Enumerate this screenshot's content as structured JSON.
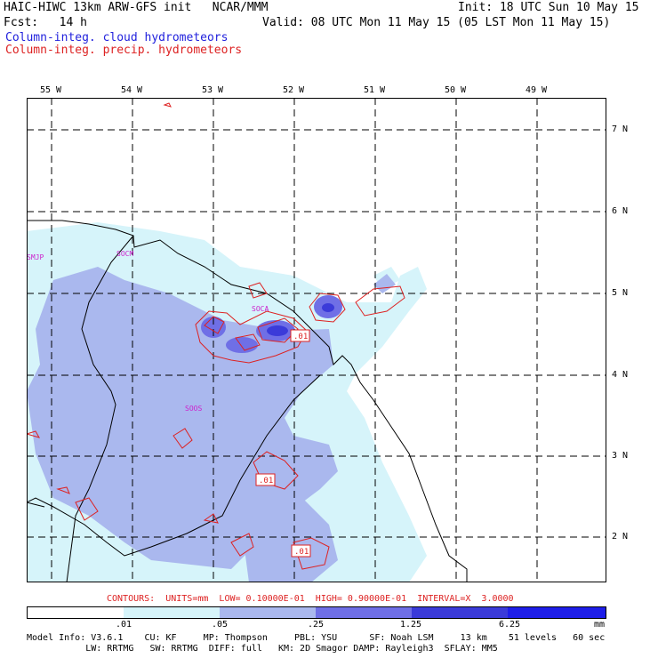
{
  "header": {
    "line1_left": "HAIC-HIWC 13km ARW-GFS init   NCAR/MMM",
    "line1_right": "Init: 18 UTC Sun 10 May 15",
    "line2_left": "Fcst:   14 h",
    "line2_right": "Valid: 08 UTC Mon 11 May 15 (05 LST Mon 11 May 15)",
    "field1": "Column-integ. cloud hydrometeors",
    "field2": "Column-integ. precip. hydrometeors"
  },
  "map": {
    "lon_labels": [
      "55 W",
      "54 W",
      "53 W",
      "52 W",
      "51 W",
      "50 W",
      "49 W"
    ],
    "lat_labels": [
      "7 N",
      "6 N",
      "5 N",
      "4 N",
      "3 N",
      "2 N"
    ],
    "stations": [
      "SMJP",
      "SOCM",
      "SOCA",
      "SOOS"
    ],
    "contour_labels": [
      ".01",
      ".01",
      ".01"
    ]
  },
  "contours_text": "CONTOURS:  UNITS=mm  LOW= 0.10000E-01  HIGH= 0.90000E-01  INTERVAL=X  3.0000",
  "colorbar": {
    "labels": [
      ".01",
      ".05",
      ".25",
      "1.25",
      "6.25"
    ],
    "units": "mm",
    "colors": [
      "#ffffff",
      "#d6f4fa",
      "#aab8ee",
      "#6f6fe6",
      "#3b3bd9",
      "#1e1ee8"
    ]
  },
  "footer": {
    "line1": "Model Info: V3.6.1    CU: KF     MP: Thompson     PBL: YSU      SF: Noah LSM     13 km    51 levels   60 sec",
    "line2": "           LW: RRTMG   SW: RRTMG  DIFF: full   KM: 2D Smagor DAMP: Rayleigh3  SFLAY: MM5"
  }
}
